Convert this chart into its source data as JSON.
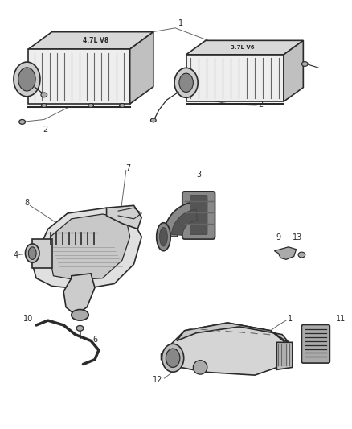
{
  "bg_color": "#ffffff",
  "dark": "#2a2a2a",
  "mid": "#666666",
  "light": "#aaaaaa",
  "vlight": "#dddddd",
  "fig_width": 4.38,
  "fig_height": 5.33,
  "dpi": 100
}
